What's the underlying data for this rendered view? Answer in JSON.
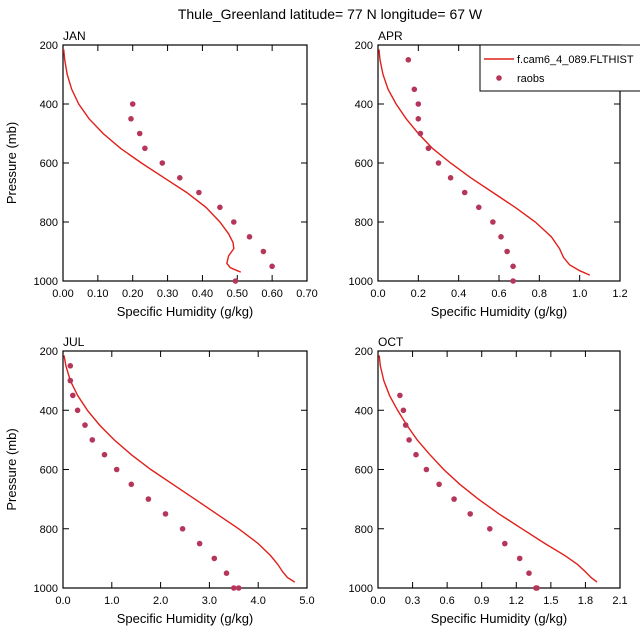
{
  "title": "Thule_Greenland  latitude= 77 N longitude= 67 W",
  "legend": {
    "model_label": "f.cam6_4_089.FLTHIST",
    "obs_label": "raobs",
    "model_color": "#e0201a",
    "obs_color": "#b5365a"
  },
  "chart_data": [
    {
      "type": "line",
      "title": "JAN",
      "xlabel": "Specific Humidity (g/kg)",
      "ylabel": "Pressure (mb)",
      "xlim": [
        0,
        0.7
      ],
      "ylim": [
        1000,
        200
      ],
      "xticks": [
        "0.00",
        "0.10",
        "0.20",
        "0.30",
        "0.40",
        "0.50",
        "0.60",
        "0.70"
      ],
      "xtick_values": [
        0,
        0.1,
        0.2,
        0.3,
        0.4,
        0.5,
        0.6,
        0.7
      ],
      "yticks": [
        "200",
        "400",
        "600",
        "800",
        "1000"
      ],
      "ytick_values": [
        200,
        400,
        600,
        800,
        1000
      ],
      "series": [
        {
          "name": "f.cam6_4_089.FLTHIST",
          "style": "line",
          "x": [
            0.002,
            0.005,
            0.012,
            0.025,
            0.045,
            0.075,
            0.115,
            0.165,
            0.225,
            0.29,
            0.355,
            0.41,
            0.45,
            0.475,
            0.488,
            0.49,
            0.475,
            0.47,
            0.48,
            0.5,
            0.51
          ],
          "y": [
            215,
            250,
            300,
            350,
            400,
            450,
            500,
            550,
            600,
            650,
            700,
            750,
            800,
            840,
            870,
            890,
            915,
            940,
            955,
            965,
            970
          ]
        },
        {
          "name": "raobs",
          "style": "markers",
          "x": [
            0.2,
            0.195,
            0.22,
            0.235,
            0.285,
            0.335,
            0.39,
            0.45,
            0.49,
            0.535,
            0.575,
            0.6,
            0.495
          ],
          "y": [
            400,
            450,
            500,
            550,
            600,
            650,
            700,
            750,
            800,
            850,
            900,
            950,
            1000
          ]
        }
      ]
    },
    {
      "type": "line",
      "title": "APR",
      "xlabel": "Specific Humidity (g/kg)",
      "ylabel": "",
      "xlim": [
        0,
        1.2
      ],
      "ylim": [
        1000,
        200
      ],
      "xticks": [
        "0.0",
        "0.2",
        "0.4",
        "0.6",
        "0.8",
        "1.0",
        "1.2"
      ],
      "xtick_values": [
        0,
        0.2,
        0.4,
        0.6,
        0.8,
        1.0,
        1.2
      ],
      "yticks": [
        "200",
        "400",
        "600",
        "800",
        "1000"
      ],
      "ytick_values": [
        200,
        400,
        600,
        800,
        1000
      ],
      "series": [
        {
          "name": "f.cam6_4_089.FLTHIST",
          "style": "line",
          "x": [
            0.005,
            0.01,
            0.025,
            0.05,
            0.09,
            0.14,
            0.2,
            0.27,
            0.36,
            0.46,
            0.57,
            0.68,
            0.78,
            0.86,
            0.9,
            0.92,
            0.95,
            1.0,
            1.05
          ],
          "y": [
            215,
            250,
            300,
            350,
            400,
            450,
            500,
            550,
            600,
            650,
            700,
            750,
            800,
            850,
            890,
            920,
            945,
            965,
            980
          ]
        },
        {
          "name": "raobs",
          "style": "markers",
          "x": [
            0.15,
            0.18,
            0.2,
            0.2,
            0.21,
            0.25,
            0.3,
            0.36,
            0.43,
            0.5,
            0.57,
            0.61,
            0.64,
            0.67,
            0.67
          ],
          "y": [
            250,
            350,
            400,
            450,
            500,
            550,
            600,
            650,
            700,
            750,
            800,
            850,
            900,
            950,
            1000
          ]
        }
      ]
    },
    {
      "type": "line",
      "title": "JUL",
      "xlabel": "Specific Humidity (g/kg)",
      "ylabel": "Pressure (mb)",
      "xlim": [
        0,
        5.0
      ],
      "ylim": [
        1000,
        200
      ],
      "xticks": [
        "0.0",
        "1.0",
        "2.0",
        "3.0",
        "4.0",
        "5.0"
      ],
      "xtick_values": [
        0,
        1,
        2,
        3,
        4,
        5
      ],
      "yticks": [
        "200",
        "400",
        "600",
        "800",
        "1000"
      ],
      "ytick_values": [
        200,
        400,
        600,
        800,
        1000
      ],
      "series": [
        {
          "name": "f.cam6_4_089.FLTHIST",
          "style": "line",
          "x": [
            0.02,
            0.06,
            0.15,
            0.3,
            0.5,
            0.75,
            1.05,
            1.4,
            1.8,
            2.25,
            2.7,
            3.15,
            3.6,
            4.0,
            4.25,
            4.4,
            4.5,
            4.6,
            4.75
          ],
          "y": [
            215,
            250,
            300,
            350,
            400,
            450,
            500,
            550,
            600,
            650,
            700,
            750,
            800,
            850,
            890,
            920,
            945,
            965,
            980
          ]
        },
        {
          "name": "raobs",
          "style": "markers",
          "x": [
            0.15,
            0.15,
            0.2,
            0.3,
            0.45,
            0.6,
            0.85,
            1.1,
            1.4,
            1.75,
            2.1,
            2.45,
            2.8,
            3.1,
            3.35,
            3.5,
            3.6
          ],
          "y": [
            250,
            300,
            350,
            400,
            450,
            500,
            550,
            600,
            650,
            700,
            750,
            800,
            850,
            900,
            950,
            1000,
            1000
          ]
        }
      ]
    },
    {
      "type": "line",
      "title": "OCT",
      "xlabel": "Specific Humidity (g/kg)",
      "ylabel": "",
      "xlim": [
        0,
        2.1
      ],
      "ylim": [
        1000,
        200
      ],
      "xticks": [
        "0.0",
        "0.3",
        "0.6",
        "0.9",
        "1.2",
        "1.5",
        "1.8",
        "2.1"
      ],
      "xtick_values": [
        0,
        0.3,
        0.6,
        0.9,
        1.2,
        1.5,
        1.8,
        2.1
      ],
      "yticks": [
        "200",
        "400",
        "600",
        "800",
        "1000"
      ],
      "ytick_values": [
        200,
        400,
        600,
        800,
        1000
      ],
      "series": [
        {
          "name": "f.cam6_4_089.FLTHIST",
          "style": "line",
          "x": [
            0.01,
            0.02,
            0.05,
            0.1,
            0.17,
            0.25,
            0.34,
            0.45,
            0.57,
            0.71,
            0.87,
            1.05,
            1.25,
            1.45,
            1.62,
            1.73,
            1.8,
            1.85,
            1.9
          ],
          "y": [
            215,
            250,
            300,
            350,
            400,
            450,
            500,
            550,
            600,
            650,
            700,
            750,
            800,
            850,
            890,
            920,
            945,
            965,
            980
          ]
        },
        {
          "name": "raobs",
          "style": "markers",
          "x": [
            0.19,
            0.22,
            0.24,
            0.27,
            0.33,
            0.42,
            0.53,
            0.66,
            0.8,
            0.97,
            1.1,
            1.23,
            1.31,
            1.38,
            1.37
          ],
          "y": [
            350,
            400,
            450,
            500,
            550,
            600,
            650,
            700,
            750,
            800,
            850,
            900,
            950,
            1000,
            1000
          ]
        }
      ]
    }
  ]
}
